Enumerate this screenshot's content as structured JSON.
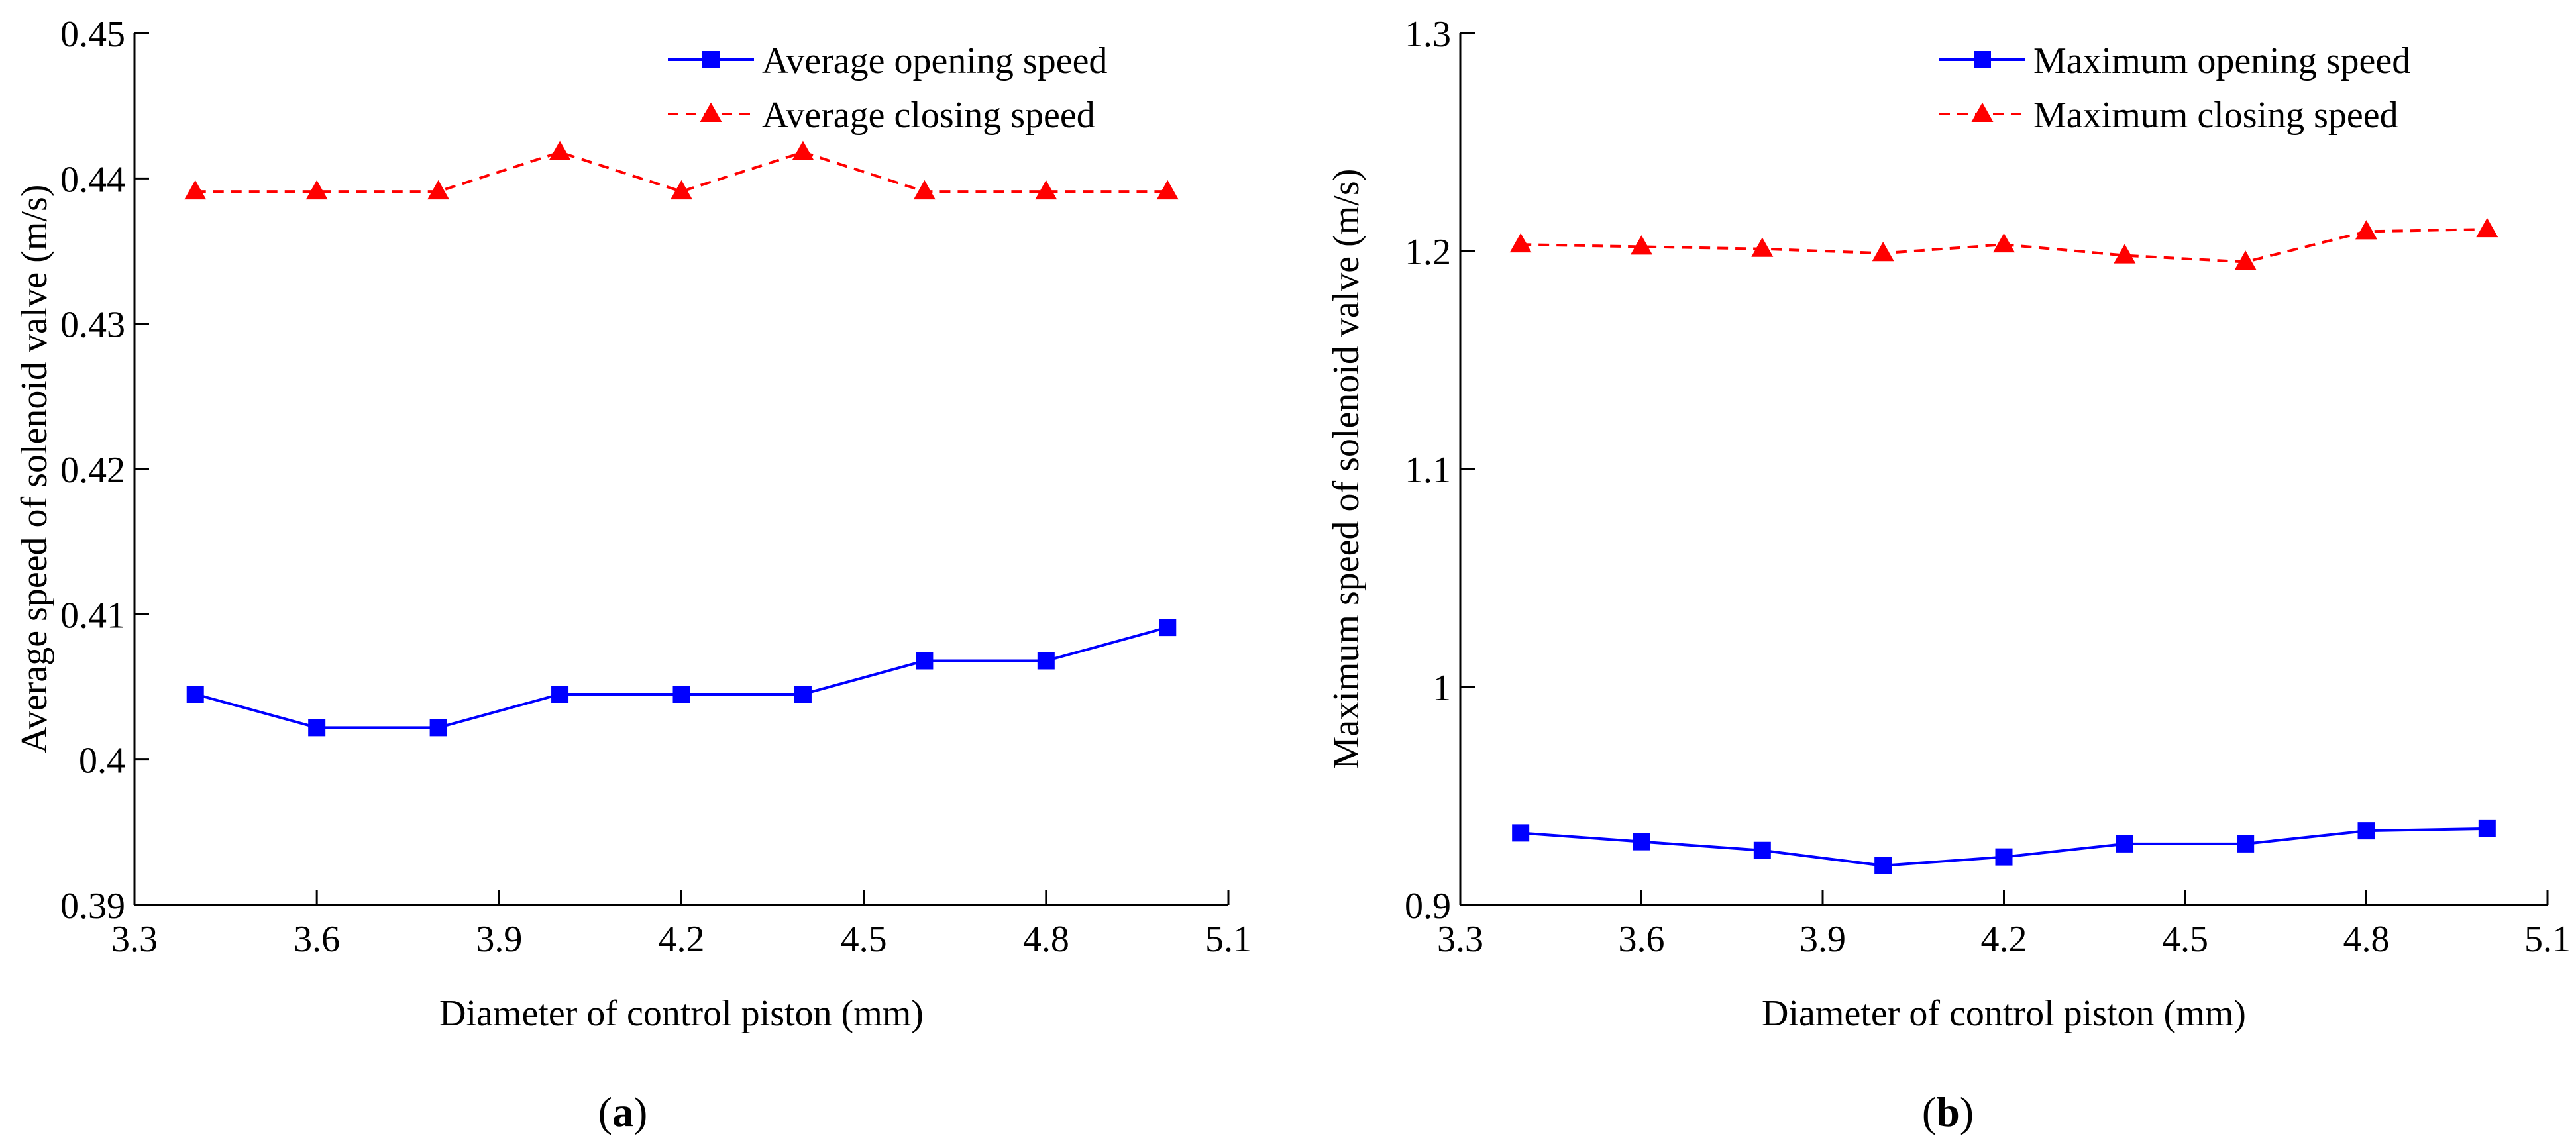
{
  "chart_data": [
    {
      "type": "line",
      "panel_label": "a",
      "xlabel": "Diameter of control piston (mm)",
      "ylabel": "Average speed of solenoid valve (m/s)",
      "xlim": [
        3.3,
        5.1
      ],
      "ylim": [
        0.39,
        0.45
      ],
      "xticks": [
        "3.3",
        "3.6",
        "3.9",
        "4.2",
        "4.5",
        "4.8",
        "5.1"
      ],
      "yticks": [
        "0.39",
        "0.4",
        "0.41",
        "0.42",
        "0.43",
        "0.44",
        "0.45"
      ],
      "xtick_values": [
        3.3,
        3.6,
        3.9,
        4.2,
        4.5,
        4.8,
        5.1
      ],
      "ytick_values": [
        0.39,
        0.4,
        0.41,
        0.42,
        0.43,
        0.44,
        0.45
      ],
      "legend_position": "top-right",
      "x": [
        3.4,
        3.6,
        3.8,
        4.0,
        4.2,
        4.4,
        4.6,
        4.8,
        5.0
      ],
      "series": [
        {
          "name": "Average opening speed",
          "color": "#0000ff",
          "marker": "square",
          "line_style": "solid",
          "values": [
            0.4045,
            0.4022,
            0.4022,
            0.4045,
            0.4045,
            0.4045,
            0.4068,
            0.4068,
            0.4091
          ]
        },
        {
          "name": "Average closing speed",
          "color": "#ff0000",
          "marker": "triangle",
          "line_style": "dashed",
          "values": [
            0.4391,
            0.4391,
            0.4391,
            0.4418,
            0.4391,
            0.4418,
            0.4391,
            0.4391,
            0.4391
          ]
        }
      ]
    },
    {
      "type": "line",
      "panel_label": "b",
      "xlabel": "Diameter of control piston (mm)",
      "ylabel": "Maximum speed of solenoid valve (m/s)",
      "xlim": [
        3.3,
        5.1
      ],
      "ylim": [
        0.9,
        1.3
      ],
      "xticks": [
        "3.3",
        "3.6",
        "3.9",
        "4.2",
        "4.5",
        "4.8",
        "5.1"
      ],
      "yticks": [
        "0.9",
        "1",
        "1.1",
        "1.2",
        "1.3"
      ],
      "xtick_values": [
        3.3,
        3.6,
        3.9,
        4.2,
        4.5,
        4.8,
        5.1
      ],
      "ytick_values": [
        0.9,
        1.0,
        1.1,
        1.2,
        1.3
      ],
      "legend_position": "top-right",
      "x": [
        3.4,
        3.6,
        3.8,
        4.0,
        4.2,
        4.4,
        4.6,
        4.8,
        5.0
      ],
      "series": [
        {
          "name": "Maximum opening speed",
          "color": "#0000ff",
          "marker": "square",
          "line_style": "solid",
          "values": [
            0.933,
            0.929,
            0.925,
            0.918,
            0.922,
            0.928,
            0.928,
            0.934,
            0.935
          ]
        },
        {
          "name": "Maximum closing speed",
          "color": "#ff0000",
          "marker": "triangle",
          "line_style": "dashed",
          "values": [
            1.203,
            1.202,
            1.201,
            1.199,
            1.203,
            1.198,
            1.195,
            1.209,
            1.21
          ]
        }
      ]
    }
  ]
}
